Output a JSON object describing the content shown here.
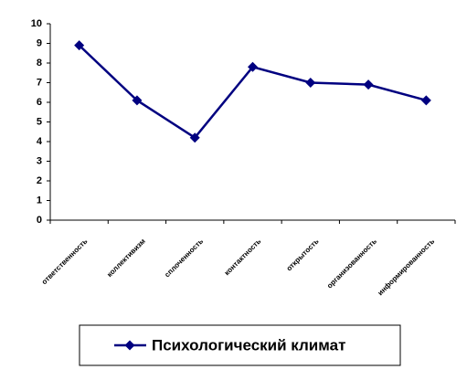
{
  "chart_data": {
    "type": "line",
    "categories": [
      "ответственность",
      "коллективизм",
      "сплоченность",
      "контактность",
      "открытость",
      "организованность",
      "информированность"
    ],
    "series": [
      {
        "name": "Психологический климат",
        "color": "#000080",
        "values": [
          8.9,
          6.1,
          4.2,
          7.8,
          7.0,
          6.9,
          6.1
        ]
      }
    ],
    "ylim": [
      0,
      10
    ],
    "yticks": [
      0,
      1,
      2,
      3,
      4,
      5,
      6,
      7,
      8,
      9,
      10
    ],
    "grid": false,
    "legend": "bottom"
  }
}
